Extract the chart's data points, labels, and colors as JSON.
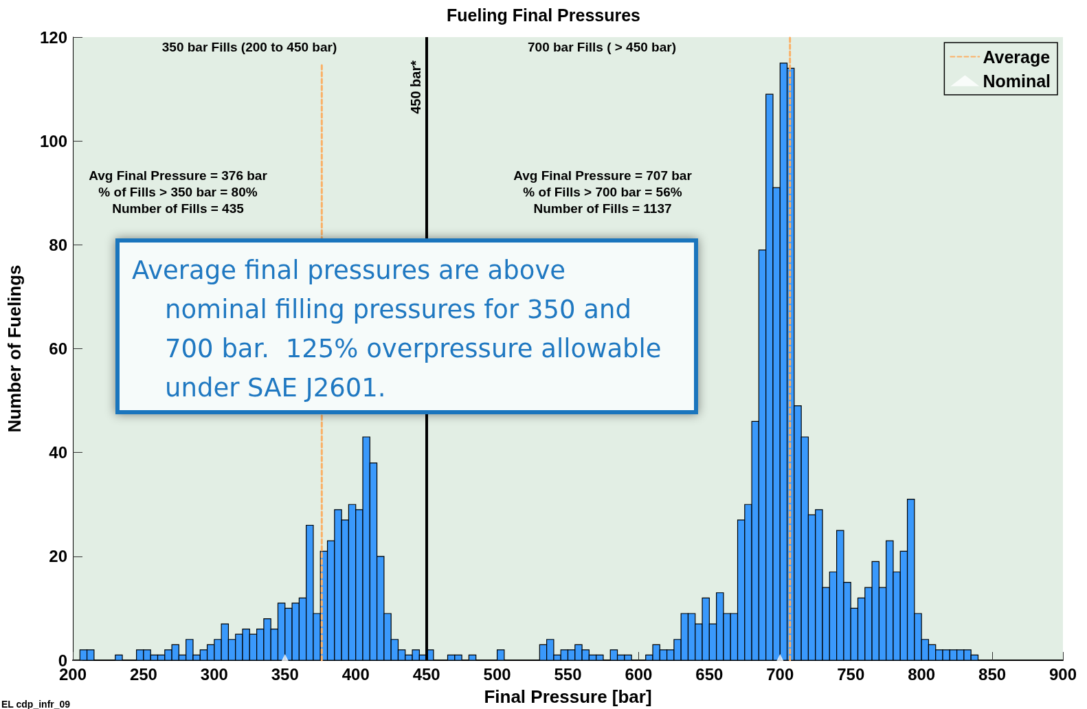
{
  "chart_data": {
    "type": "histogram",
    "title": "Fueling Final Pressures",
    "xlabel": "Final Pressure [bar]",
    "ylabel": "Number of Fuelings",
    "bins": [
      200,
      205,
      210,
      215,
      220,
      225,
      230,
      235,
      240,
      245,
      250,
      255,
      260,
      265,
      270,
      275,
      280,
      285,
      290,
      295,
      300,
      305,
      310,
      315,
      320,
      325,
      330,
      335,
      340,
      345,
      350,
      355,
      360,
      365,
      370,
      375,
      380,
      385,
      390,
      395,
      400,
      405,
      410,
      415,
      420,
      425,
      430,
      435,
      440,
      445,
      450,
      455,
      460,
      465,
      470,
      475,
      480,
      485,
      490,
      495,
      500,
      505,
      510,
      515,
      520,
      525,
      530,
      535,
      540,
      545,
      550,
      555,
      560,
      565,
      570,
      575,
      580,
      585,
      590,
      595,
      600,
      605,
      610,
      615,
      620,
      625,
      630,
      635,
      640,
      645,
      650,
      655,
      660,
      665,
      670,
      675,
      680,
      685,
      690,
      695,
      700,
      705,
      710,
      715,
      720,
      725,
      730,
      735,
      740,
      745,
      750,
      755,
      760,
      765,
      770,
      775,
      780,
      785,
      790,
      795,
      800,
      805,
      810,
      815,
      820,
      825,
      830,
      835,
      840,
      845,
      850,
      855,
      860,
      865,
      870,
      875,
      880,
      885,
      890,
      895,
      900
    ],
    "values": [
      0,
      2,
      2,
      0,
      0,
      0,
      1,
      0,
      0,
      2,
      2,
      1,
      1,
      2,
      3,
      1,
      4,
      1,
      2,
      3,
      4,
      7,
      4,
      5,
      6,
      5,
      6,
      8,
      6,
      11,
      10,
      11,
      12,
      26,
      9,
      21,
      23,
      29,
      27,
      30,
      29,
      43,
      38,
      20,
      9,
      4,
      2,
      1,
      2,
      1,
      2,
      0,
      0,
      1,
      1,
      0,
      1,
      0,
      0,
      0,
      2,
      0,
      0,
      0,
      0,
      0,
      3,
      4,
      1,
      2,
      2,
      3,
      2,
      1,
      1,
      0,
      2,
      1,
      1,
      0,
      0,
      1,
      3,
      2,
      2,
      4,
      9,
      9,
      7,
      12,
      7,
      13,
      9,
      9,
      27,
      30,
      46,
      79,
      109,
      91,
      115,
      114,
      49,
      43,
      28,
      29,
      14,
      17,
      25,
      15,
      10,
      12,
      14,
      19,
      14,
      23,
      17,
      21,
      31,
      9,
      4,
      3,
      2,
      2,
      2,
      2,
      2,
      1,
      0,
      0,
      0,
      0,
      0,
      0,
      0,
      0,
      0,
      0,
      0,
      0
    ],
    "color": "#3a99fc",
    "series": [
      {
        "name": "Average",
        "type": "line",
        "color": "#fbb066",
        "line_style": "dashed",
        "marker": "none",
        "x": [
          376,
          376
        ],
        "values": [
          0,
          115
        ]
      },
      {
        "type": "line",
        "color": "#fbb066",
        "line_style": "dashed",
        "marker": "none",
        "x": [
          707,
          707
        ],
        "values": [
          0,
          120
        ]
      },
      {
        "name": "Nominal",
        "type": "scatter",
        "color": "#ffffff",
        "marker": "triangle",
        "x": [
          350,
          700
        ],
        "values": [
          0,
          0
        ]
      }
    ],
    "ref_lines": [
      {
        "axis": "x",
        "value": 450,
        "label": "450 bar*",
        "color": "#000000",
        "line_style": "solid"
      }
    ],
    "annotations": [
      "350 bar Fills (200 to 450 bar)",
      "700 bar Fills ( > 450 bar)",
      "Avg Final Pressure = 376 bar\n% of Fills > 350 bar = 80%\nNumber of Fills = 435",
      "Avg Final Pressure = 707 bar\n% of Fills > 700 bar = 56%\nNumber of Fills = 1137",
      "Average final pressures are above nominal filling pressures for 350 and 700 bar.  125% overpressure allowable under SAE J2601.",
      "EL cdp_infr_09"
    ],
    "xlim": [
      200,
      900
    ],
    "xticks": [
      200,
      250,
      300,
      350,
      400,
      450,
      500,
      550,
      600,
      650,
      700,
      750,
      800,
      850,
      900
    ],
    "ylim": [
      0,
      120
    ],
    "yticks": [
      0,
      20,
      40,
      60,
      80,
      100,
      120
    ],
    "grid": false,
    "legend": "top right"
  }
}
